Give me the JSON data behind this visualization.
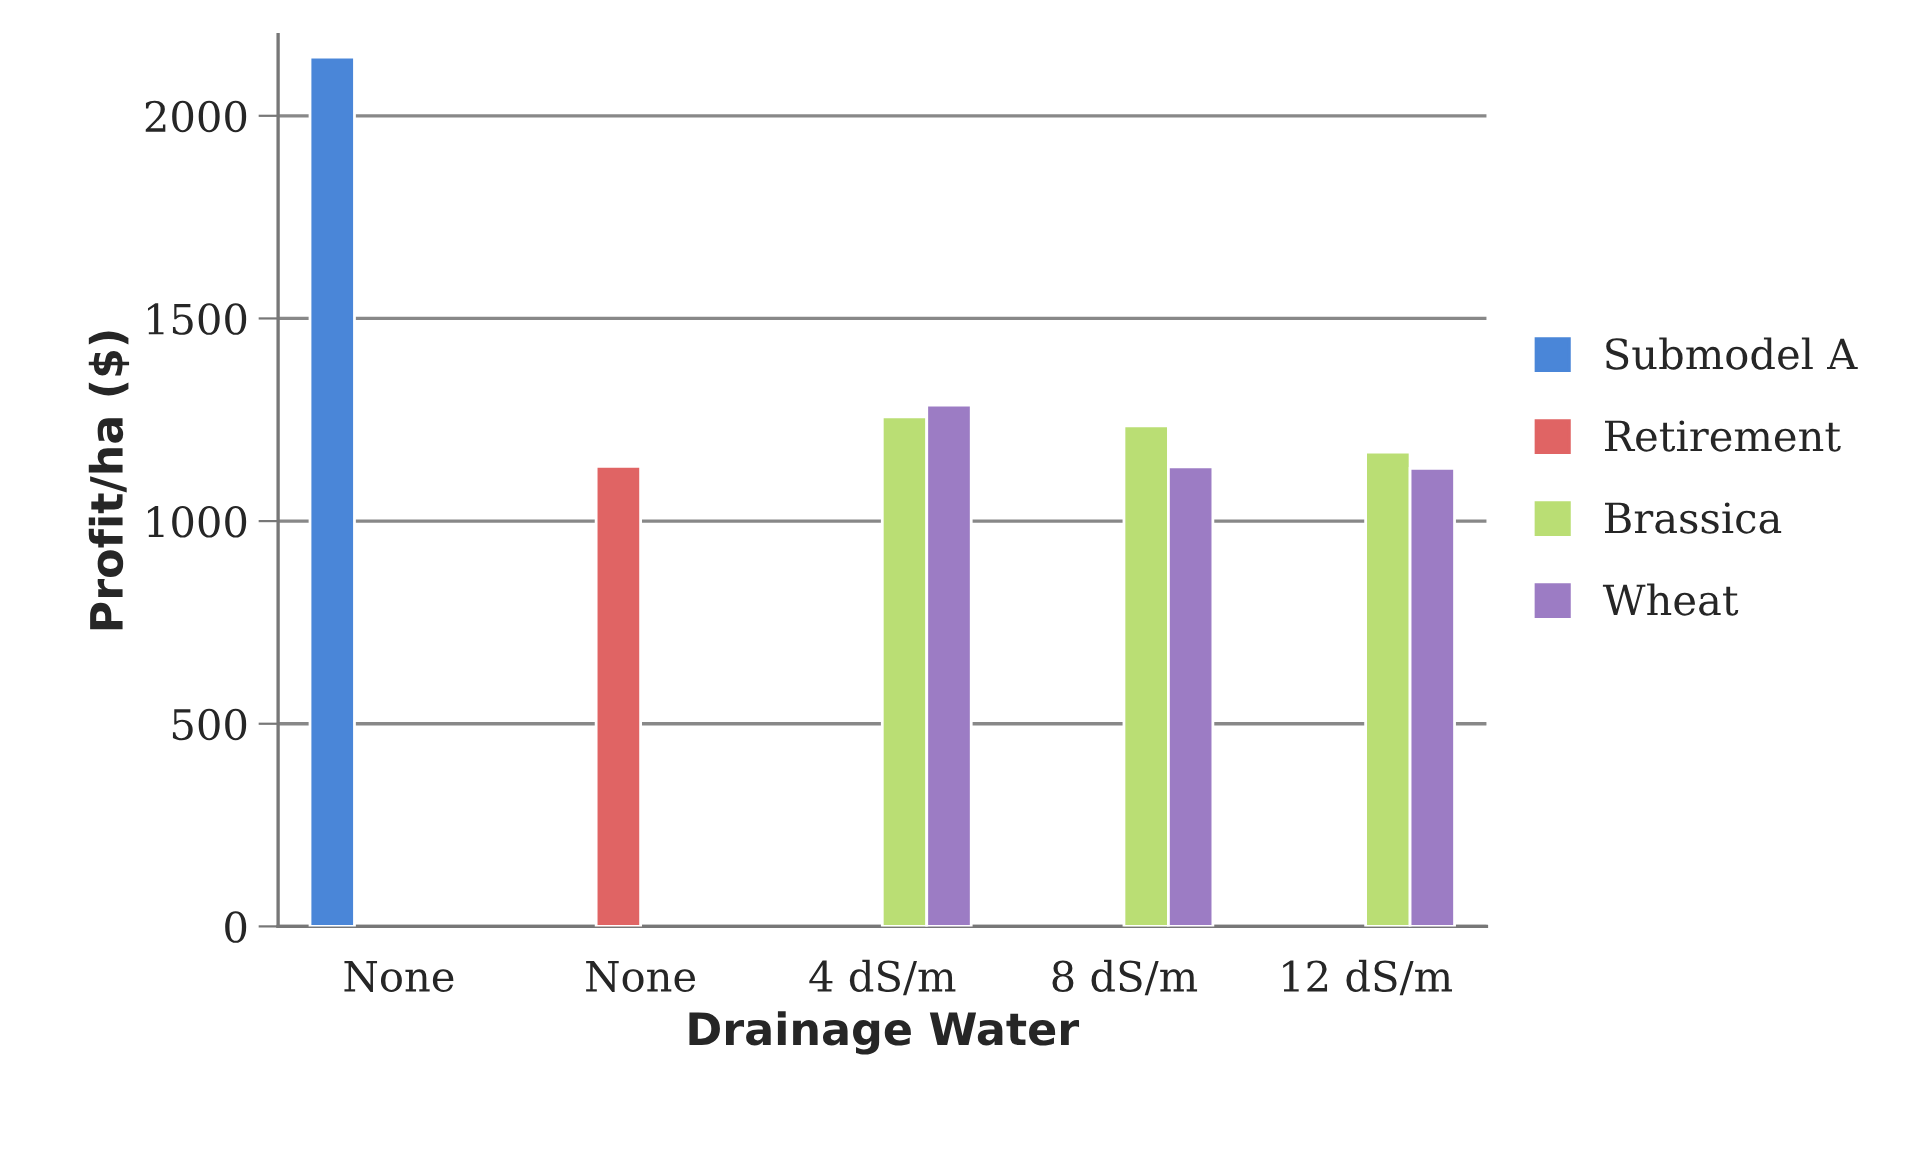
{
  "chart_data": {
    "type": "bar",
    "xlabel": "Drainage Water",
    "ylabel": "Profit/ha ($)",
    "categories": [
      "None",
      "None",
      "4 dS/m",
      "8 dS/m",
      "12 dS/m"
    ],
    "series": [
      {
        "name": "Submodel A",
        "color": "#4a86d8",
        "values": [
          2145,
          null,
          null,
          null,
          null
        ]
      },
      {
        "name": "Retirement",
        "color": "#e06464",
        "values": [
          null,
          1135,
          null,
          null,
          null
        ]
      },
      {
        "name": "Brassica",
        "color": "#bade74",
        "values": [
          null,
          null,
          1257,
          1235,
          1170
        ]
      },
      {
        "name": "Wheat",
        "color": "#9c7cc4",
        "values": [
          null,
          null,
          1286,
          1134,
          1130
        ]
      }
    ],
    "ylim": [
      0,
      2200
    ],
    "yticks": [
      0,
      500,
      1000,
      1500,
      2000
    ],
    "grid": "y",
    "legend": "right"
  }
}
